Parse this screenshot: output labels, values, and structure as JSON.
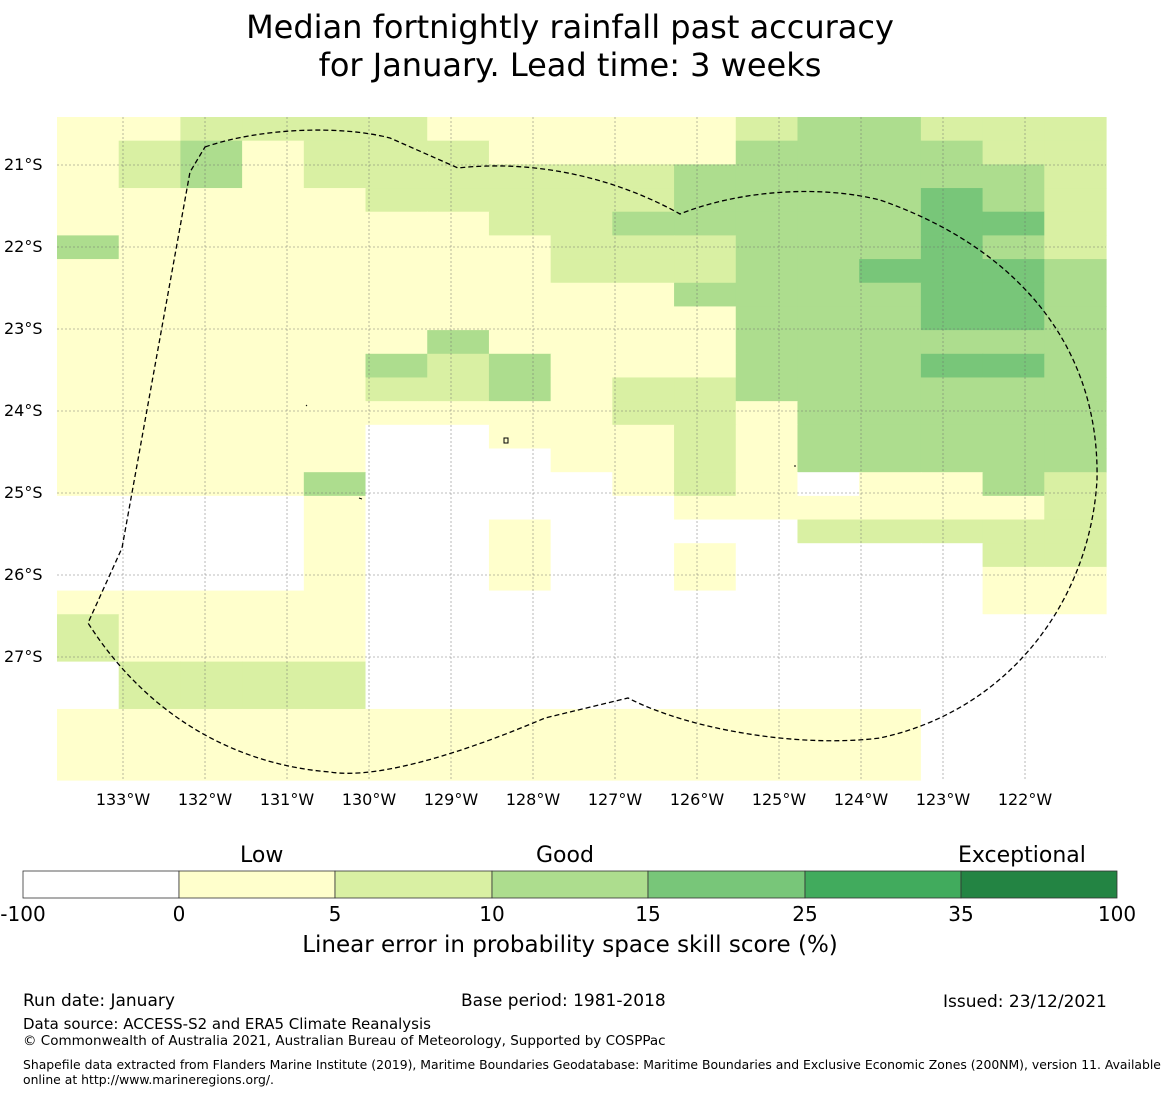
{
  "title": {
    "line1": "Median fortnightly rainfall past accuracy",
    "line2": "for January. Lead time: 3 weeks"
  },
  "map": {
    "lat_labels": [
      "21°S",
      "22°S",
      "23°S",
      "24°S",
      "25°S",
      "26°S",
      "27°S"
    ],
    "lon_labels": [
      "133°W",
      "132°W",
      "131°W",
      "130°W",
      "129°W",
      "128°W",
      "127°W",
      "126°W",
      "125°W",
      "124°W",
      "123°W",
      "122°W"
    ],
    "grid_categories": [
      "11222211111233222",
      "12312221111333322",
      "12312222223333332",
      "11111222223333432",
      "11111112233333442",
      "31111111222333432",
      "11111111222334443",
      "11111111113333443",
      "11111111111333443",
      "11111131111333333",
      "11111323111333443",
      "11111223122333333",
      "11111111122133333",
      "11111001112133333",
      "11111000112133333",
      "11113000012101132",
      "00001000001111112",
      "00001001000022222",
      "00001001001000022",
      "00001001001000011",
      "11111000000000011",
      "21111000000000000",
      "21111000000000000",
      "02222000000000000",
      "02222000000000000",
      "11111111111111000",
      "11111111111111000",
      "11111111111111000"
    ]
  },
  "colorbar": {
    "categories": [
      "Low",
      "Good",
      "Exceptional"
    ],
    "ticks": [
      "-100",
      "0",
      "5",
      "10",
      "15",
      "25",
      "35",
      "100"
    ],
    "colors": [
      "#ffffff",
      "#ffffcc",
      "#d9f0a3",
      "#addd8e",
      "#78c679",
      "#41ab5d",
      "#238443"
    ],
    "label": "Linear error in probability space skill score (%)"
  },
  "footer": {
    "run_date": "Run date: January",
    "base_period": "Base period: 1981-2018",
    "issued": "Issued: 23/12/2021",
    "data_source": "Data source: ACCESS-S2 and ERA5 Climate Reanalysis",
    "copyright": "© Commonwealth of Australia 2021, Australian Bureau of Meteorology, Supported by COSPPac",
    "shapefile_line1": "Shapefile data extracted from Flanders Marine Institute (2019), Maritime Boundaries Geodatabase: Maritime Boundaries and Exclusive Economic Zones (200NM), version 11. Available",
    "shapefile_line2": "online at http://www.marineregions.org/."
  }
}
